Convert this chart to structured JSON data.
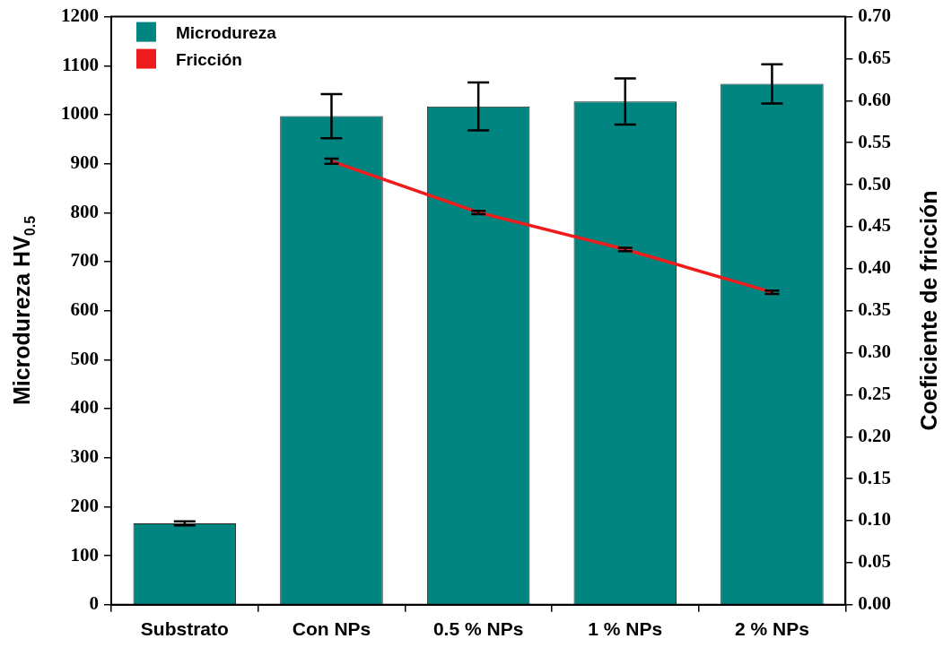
{
  "chart_data": {
    "type": "bar",
    "categories": [
      "Substrato",
      "Con NPs",
      "0.5 % NPs",
      "1 % NPs",
      "2 % NPs"
    ],
    "ylabel": "Microdureza HV$_{0.5}$",
    "y2label": "Coeficiente de fricción",
    "ylim": [
      0,
      1200
    ],
    "yticks": [
      0,
      100,
      200,
      300,
      400,
      500,
      600,
      700,
      800,
      900,
      1000,
      1100,
      1200
    ],
    "y2lim": [
      0,
      0.7
    ],
    "y2ticks": [
      {
        "value": 0,
        "label": "0.00"
      },
      {
        "value": 0.05,
        "label": "0.05"
      },
      {
        "value": 0.1,
        "label": "0.10"
      },
      {
        "value": 0.15,
        "label": "0.15"
      },
      {
        "value": 0.2,
        "label": "0.20"
      },
      {
        "value": 0.25,
        "label": "0.25"
      },
      {
        "value": 0.3,
        "label": "0.30"
      },
      {
        "value": 0.35,
        "label": "0.35"
      },
      {
        "value": 0.4,
        "label": "0.40"
      },
      {
        "value": 0.45,
        "label": "0.45"
      },
      {
        "value": 0.5,
        "label": "0.50"
      },
      {
        "value": 0.55,
        "label": "0.55"
      },
      {
        "value": 0.6,
        "label": "0.60"
      },
      {
        "value": 0.65,
        "label": "0.65"
      },
      {
        "value": 0.7,
        "label": "0.70"
      }
    ],
    "series": [
      {
        "name": "Microdureza",
        "type": "bar",
        "color": "#008580",
        "values": [
          166,
          997,
          1017,
          1027,
          1063
        ],
        "errors": [
          4,
          45,
          49,
          47,
          40
        ]
      },
      {
        "name": "Fricción",
        "type": "line",
        "axis": "y2",
        "color": "#ee1c1c",
        "values": [
          null,
          0.528,
          0.467,
          0.423,
          0.372
        ],
        "errors": [
          null,
          0.003,
          0.002,
          0.002,
          0.002
        ]
      }
    ],
    "marker": "none",
    "line_style": "solid",
    "grid": false,
    "legend": "top left"
  }
}
